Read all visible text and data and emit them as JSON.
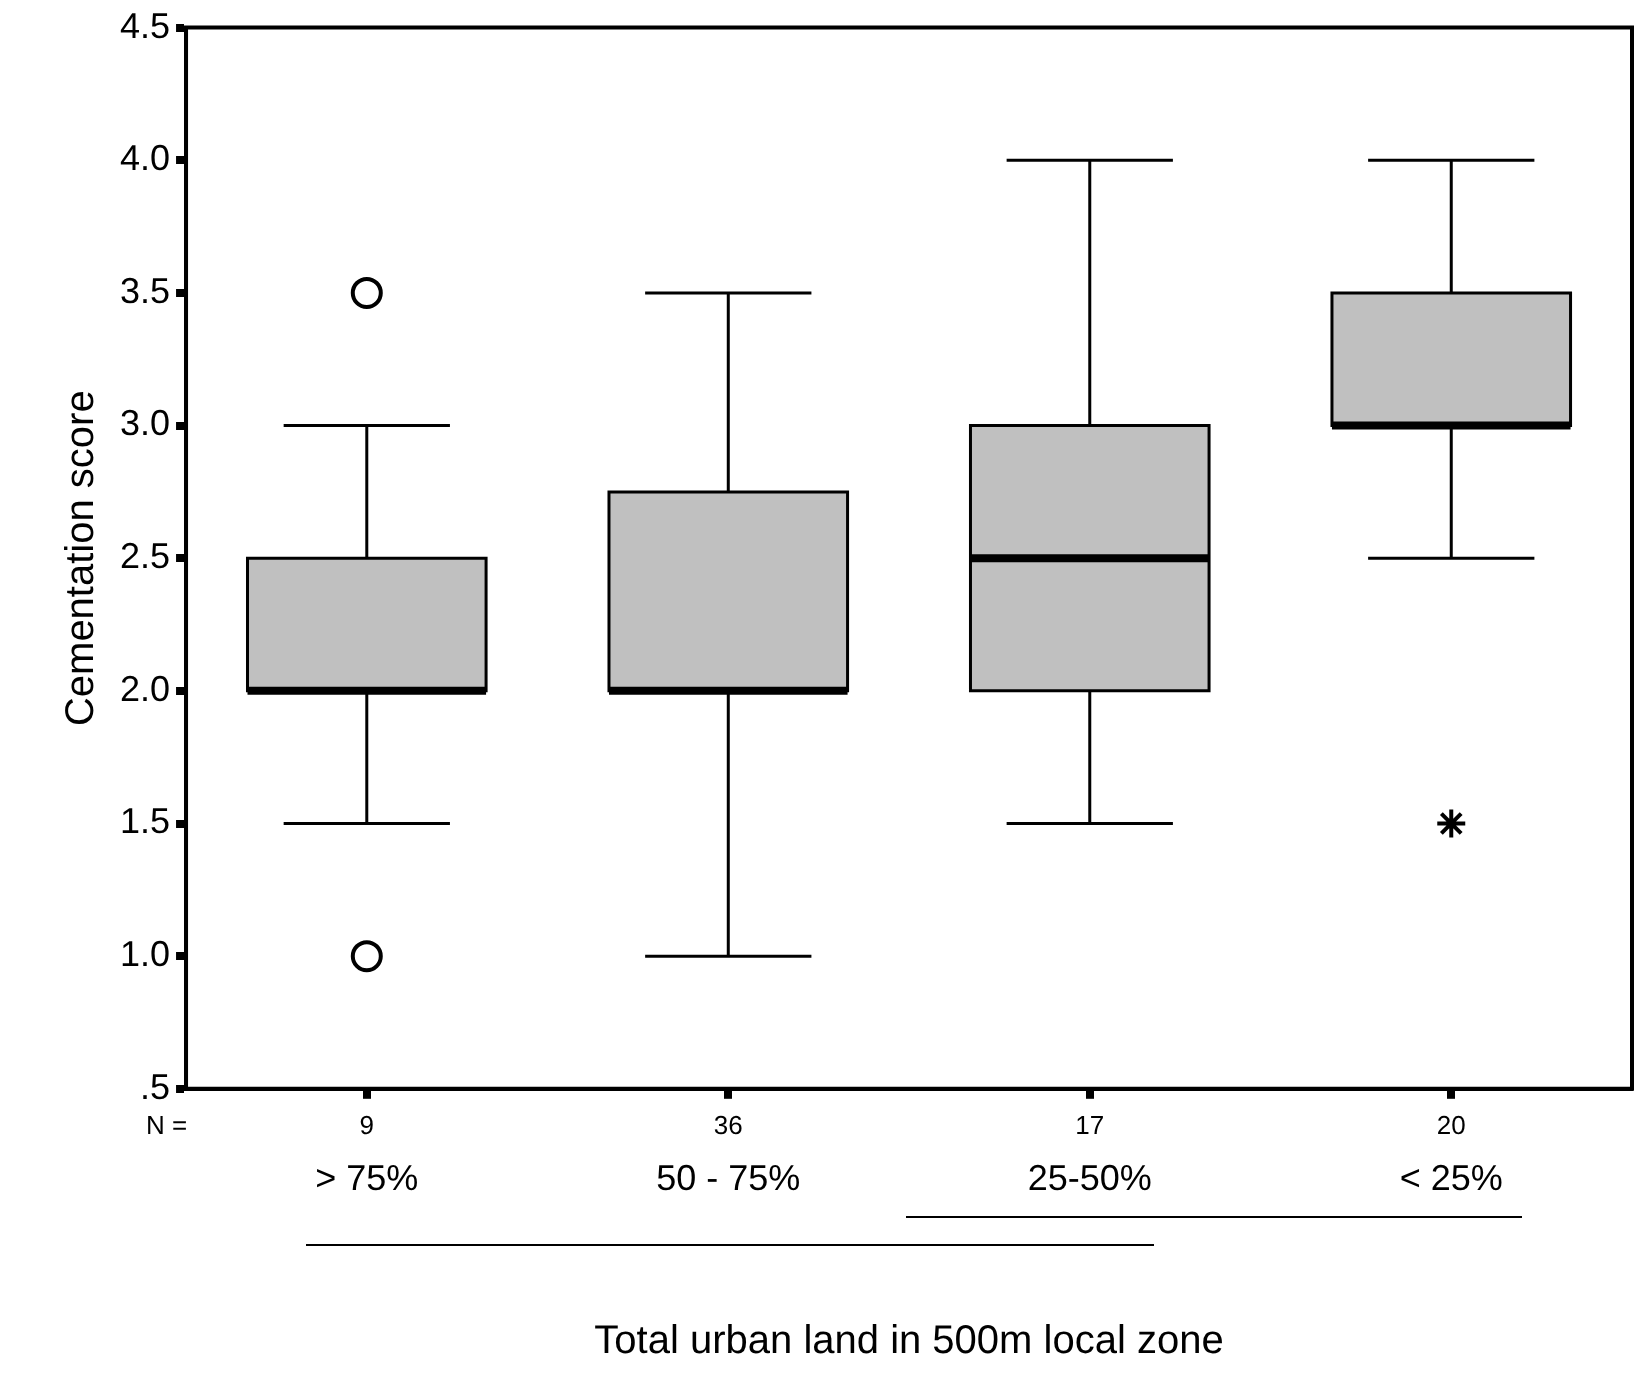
{
  "chart_data": {
    "type": "box",
    "xlabel": "Total urban land in 500m local zone",
    "ylabel": "Cementation score",
    "categories": [
      "> 75%",
      "50 - 75%",
      "25-50%",
      "< 25%"
    ],
    "color": "#c0c0c0",
    "boxes": [
      {
        "low": 1.5,
        "q1": 2.0,
        "median": 2.0,
        "q3": 2.5,
        "high": 3.0,
        "outliers": [
          3.5,
          1.0
        ]
      },
      {
        "low": 1.0,
        "q1": 2.0,
        "median": 2.0,
        "q3": 2.75,
        "high": 3.5
      },
      {
        "low": 1.5,
        "q1": 2.0,
        "median": 2.5,
        "q3": 3.0,
        "high": 4.0
      },
      {
        "low": 2.5,
        "q1": 3.0,
        "median": 3.0,
        "q3": 3.5,
        "high": 4.0
      }
    ],
    "series": [
      {
        "type": "scatter",
        "marker": "cross",
        "color": "#000000",
        "x": [
          "< 25%"
        ],
        "values": [
          1.5
        ]
      }
    ],
    "ylim": [
      0.5,
      4.5
    ],
    "yticks": [
      {
        "value": 0.5,
        "label": ".5"
      },
      {
        "value": 1.0,
        "label": "1.0"
      },
      {
        "value": 1.5,
        "label": "1.5"
      },
      {
        "value": 2.0,
        "label": "2.0"
      },
      {
        "value": 2.5,
        "label": "2.5"
      },
      {
        "value": 3.0,
        "label": "3.0"
      },
      {
        "value": 3.5,
        "label": "3.5"
      },
      {
        "value": 4.0,
        "label": "4.0"
      },
      {
        "value": 4.5,
        "label": "4.5"
      }
    ],
    "annotations": [
      "N =",
      "9",
      "36",
      "17",
      "20"
    ],
    "grid": false,
    "legend": false
  }
}
